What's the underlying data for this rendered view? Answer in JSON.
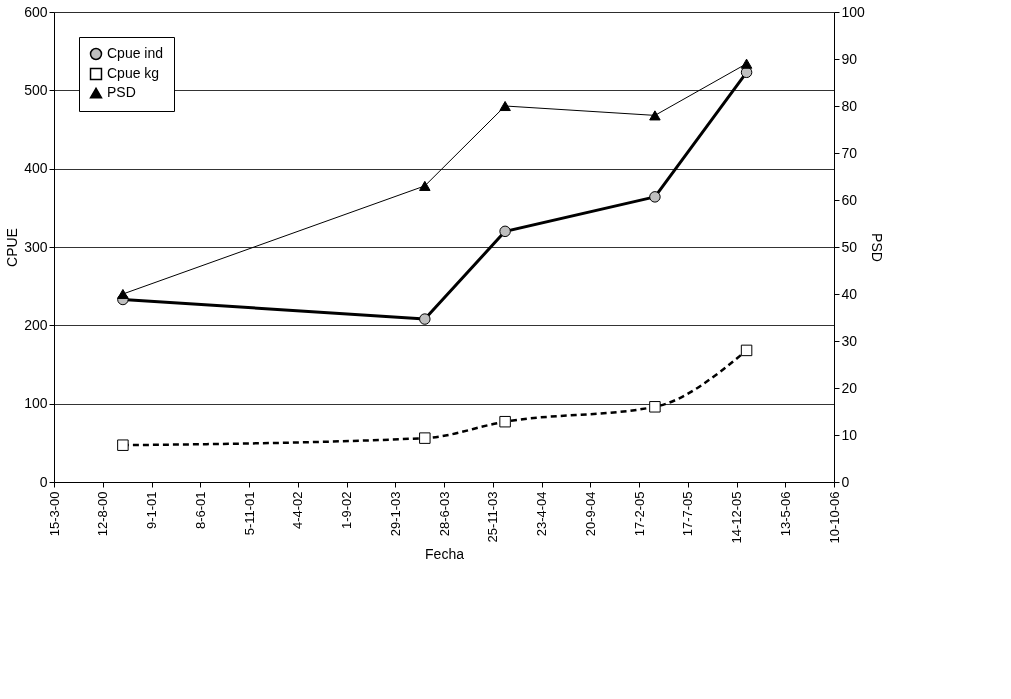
{
  "chart_data": {
    "type": "line",
    "xlabel": "Fecha",
    "ylabel": "CPUE",
    "y2label": "PSD",
    "x": [
      "2000-10-13",
      "2003-04-30",
      "2004-01-02",
      "2005-04-07",
      "2006-01-14"
    ],
    "series": [
      {
        "name": "Cpue ind",
        "color": "#000000",
        "marker": "circle",
        "line_style": "solid",
        "values": [
          233,
          208,
          320,
          364,
          523
        ]
      },
      {
        "name": "Cpue kg",
        "color": "#000000",
        "marker": "square",
        "line_style": "dashed",
        "values": [
          47,
          56,
          77,
          96,
          168
        ]
      },
      {
        "name": "PSD",
        "color": "#000000",
        "marker": "triangle",
        "line_style": "solid",
        "axis": "y2",
        "values": [
          40,
          63,
          80,
          78,
          89
        ]
      }
    ],
    "ylim": [
      0,
      600
    ],
    "yticks": [
      0,
      100,
      200,
      300,
      400,
      500,
      600
    ],
    "y2lim": [
      0,
      100
    ],
    "y2ticks": [
      0,
      10,
      20,
      30,
      40,
      50,
      60,
      70,
      80,
      90,
      100
    ],
    "xlim": [
      "2000-03-15",
      "2006-10-10"
    ],
    "xticks": [
      {
        "value": "2000-03-15",
        "label": "15-3-00"
      },
      {
        "value": "2000-08-12",
        "label": "12-8-00"
      },
      {
        "value": "2001-01-09",
        "label": "9-1-01"
      },
      {
        "value": "2001-06-08",
        "label": "8-6-01"
      },
      {
        "value": "2001-11-05",
        "label": "5-11-01"
      },
      {
        "value": "2002-04-04",
        "label": "4-4-02"
      },
      {
        "value": "2002-09-01",
        "label": "1-9-02"
      },
      {
        "value": "2003-01-29",
        "label": "29-1-03"
      },
      {
        "value": "2003-06-28",
        "label": "28-6-03"
      },
      {
        "value": "2003-11-25",
        "label": "25-11-03"
      },
      {
        "value": "2004-04-23",
        "label": "23-4-04"
      },
      {
        "value": "2004-09-20",
        "label": "20-9-04"
      },
      {
        "value": "2005-02-17",
        "label": "17-2-05"
      },
      {
        "value": "2005-07-17",
        "label": "17-7-05"
      },
      {
        "value": "2005-12-14",
        "label": "14-12-05"
      },
      {
        "value": "2006-05-13",
        "label": "13-5-06"
      },
      {
        "value": "2006-10-10",
        "label": "10-10-06"
      }
    ],
    "grid": "y",
    "legend": "top left"
  }
}
